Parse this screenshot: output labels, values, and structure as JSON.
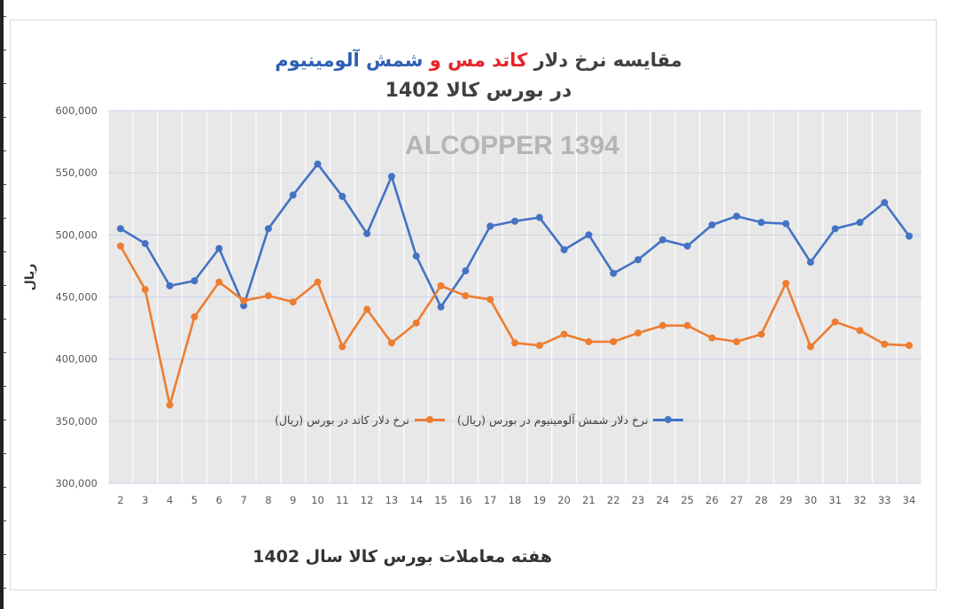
{
  "title": {
    "line1_prefix": "مقایسه نرخ دلار",
    "line1_red": "کاتد مس",
    "line1_and": "و",
    "line1_blue": "شمش آلومینیوم",
    "line2": "در بورس کالا 1402"
  },
  "colors": {
    "aluminum": "#4472c4",
    "copper": "#ed7d31",
    "title_red": "#e8222a",
    "title_blue": "#2e5fb3",
    "plot_bg": "#e8e8e8",
    "grid_vertical": "#ffffff",
    "grid_horizontal": "#c9d3e8"
  },
  "chart_data": {
    "type": "line",
    "title": "مقایسه نرخ دلار کاتد مس و شمش آلومینیوم در بورس کالا 1402",
    "watermark": "ALCOPPER 1394",
    "xlabel": "هفته معاملات بورس کالا سال 1402",
    "ylabel": "ریال",
    "ylim": [
      300000,
      600000
    ],
    "yticks": [
      "300,000",
      "350,000",
      "400,000",
      "450,000",
      "500,000",
      "550,000",
      "600,000"
    ],
    "ytick_values": [
      300000,
      350000,
      400000,
      450000,
      500000,
      550000,
      600000
    ],
    "grid": true,
    "legend_position": "center",
    "x": [
      2,
      3,
      4,
      5,
      6,
      7,
      8,
      9,
      10,
      11,
      12,
      13,
      14,
      15,
      16,
      17,
      18,
      19,
      20,
      21,
      22,
      23,
      24,
      25,
      26,
      27,
      28,
      29,
      30,
      31,
      32,
      33,
      34
    ],
    "series": [
      {
        "name": "نرخ دلار شمش آلومینیوم در بورس (ریال)",
        "color": "#4472c4",
        "values": [
          505000,
          493000,
          459000,
          463000,
          489000,
          443000,
          505000,
          532000,
          557000,
          531000,
          501000,
          547000,
          483000,
          442000,
          471000,
          507000,
          511000,
          514000,
          488000,
          500000,
          469000,
          480000,
          496000,
          491000,
          508000,
          515000,
          510000,
          509000,
          478000,
          505000,
          510000,
          526000,
          499000
        ]
      },
      {
        "name": "نرخ دلار کاتد در بورس (ریال)",
        "color": "#ed7d31",
        "values": [
          491000,
          456000,
          363000,
          434000,
          462000,
          447000,
          451000,
          446000,
          462000,
          410000,
          440000,
          413000,
          429000,
          459000,
          451000,
          448000,
          413000,
          411000,
          420000,
          414000,
          414000,
          421000,
          427000,
          427000,
          417000,
          414000,
          420000,
          461000,
          410000,
          430000,
          423000,
          412000,
          411000
        ]
      }
    ]
  }
}
